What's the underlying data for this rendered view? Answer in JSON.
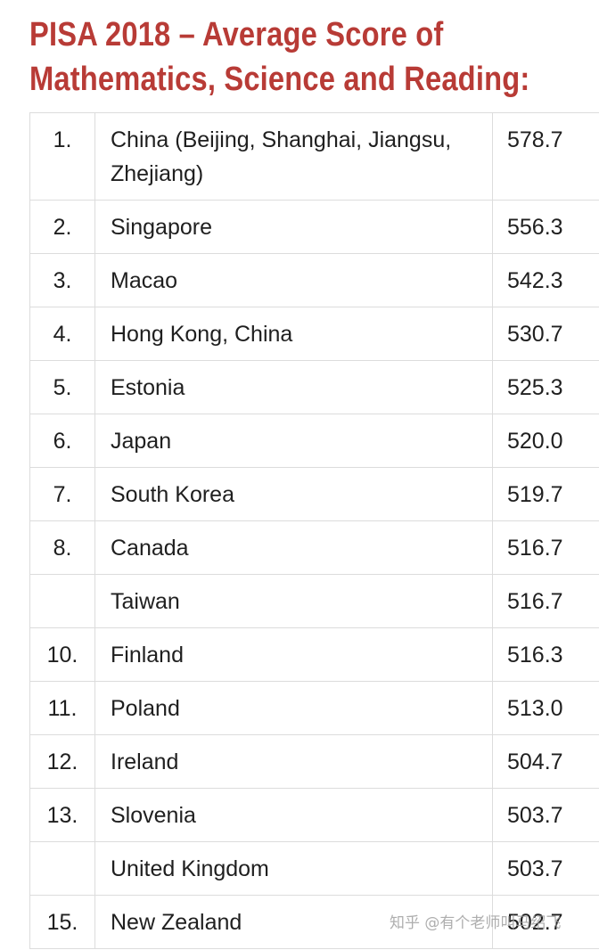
{
  "title": {
    "line1": "PISA 2018 – Average Score of",
    "line2": "Mathematics, Science and Reading:"
  },
  "rows": [
    {
      "rank": "1.",
      "country": "China (Beijing, Shanghai, Jiangsu, Zhejiang)",
      "score": "578.7"
    },
    {
      "rank": "2.",
      "country": "Singapore",
      "score": "556.3"
    },
    {
      "rank": "3.",
      "country": "Macao",
      "score": "542.3"
    },
    {
      "rank": "4.",
      "country": "Hong Kong, China",
      "score": "530.7"
    },
    {
      "rank": "5.",
      "country": "Estonia",
      "score": "525.3"
    },
    {
      "rank": "6.",
      "country": "Japan",
      "score": "520.0"
    },
    {
      "rank": "7.",
      "country": "South Korea",
      "score": "519.7"
    },
    {
      "rank": "8.",
      "country": "Canada",
      "score": "516.7"
    },
    {
      "rank": "",
      "country": "Taiwan",
      "score": "516.7"
    },
    {
      "rank": "10.",
      "country": "Finland",
      "score": "516.3"
    },
    {
      "rank": "11.",
      "country": "Poland",
      "score": "513.0"
    },
    {
      "rank": "12.",
      "country": "Ireland",
      "score": "504.7"
    },
    {
      "rank": "13.",
      "country": "Slovenia",
      "score": "503.7"
    },
    {
      "rank": "",
      "country": "United Kingdom",
      "score": "503.7"
    },
    {
      "rank": "15.",
      "country": "New Zealand",
      "score": "502.7"
    }
  ],
  "watermark": "知乎 @有个老师叫马绍飞"
}
